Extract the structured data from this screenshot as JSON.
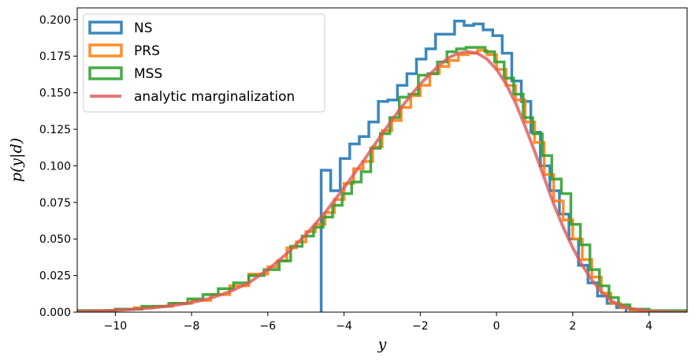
{
  "chart_data": {
    "type": "histogram",
    "xlabel": "y",
    "ylabel": "p(y|d)",
    "xlim": [
      -11,
      5
    ],
    "ylim": [
      0,
      0.208
    ],
    "xticks": [
      -10,
      -8,
      -6,
      -4,
      -2,
      0,
      2,
      4
    ],
    "xtick_labels": [
      "−10",
      "−8",
      "−6",
      "−4",
      "−2",
      "0",
      "2",
      "4"
    ],
    "yticks": [
      0,
      0.025,
      0.05,
      0.075,
      0.1,
      0.125,
      0.15,
      0.175,
      0.2
    ],
    "ytick_labels": [
      "0.000",
      "0.025",
      "0.050",
      "0.075",
      "0.100",
      "0.125",
      "0.150",
      "0.175",
      "0.200"
    ],
    "grid": false,
    "legend_position": "upper-left",
    "series": [
      {
        "name": "NS",
        "kind": "step-histogram",
        "color": "#1f77b4",
        "edges": [
          -4.6,
          -4.35,
          -4.1,
          -3.85,
          -3.6,
          -3.35,
          -3.1,
          -2.85,
          -2.6,
          -2.35,
          -2.1,
          -1.85,
          -1.6,
          -1.35,
          -1.1,
          -0.85,
          -0.6,
          -0.35,
          -0.1,
          0.15,
          0.4,
          0.65,
          0.9,
          1.15,
          1.4,
          1.65,
          1.9,
          2.15,
          2.4,
          2.65,
          2.9,
          3.15,
          3.4
        ],
        "values": [
          0.097,
          0.083,
          0.105,
          0.115,
          0.12,
          0.13,
          0.144,
          0.145,
          0.155,
          0.163,
          0.173,
          0.18,
          0.19,
          0.19,
          0.199,
          0.196,
          0.197,
          0.193,
          0.189,
          0.177,
          0.158,
          0.144,
          0.123,
          0.1,
          0.083,
          0.067,
          0.05,
          0.032,
          0.02,
          0.011,
          0.006,
          0.003
        ]
      },
      {
        "name": "PRS",
        "kind": "step-histogram",
        "color": "#ff7f0e",
        "edges": [
          -11,
          -10,
          -9.5,
          -9,
          -8.5,
          -8,
          -7.5,
          -7,
          -6.5,
          -6,
          -5.75,
          -5.5,
          -5.25,
          -5,
          -4.75,
          -4.5,
          -4.25,
          -4,
          -3.75,
          -3.5,
          -3.25,
          -3,
          -2.75,
          -2.5,
          -2.25,
          -2,
          -1.75,
          -1.5,
          -1.25,
          -1,
          -0.75,
          -0.5,
          -0.25,
          0,
          0.25,
          0.5,
          0.75,
          1,
          1.25,
          1.5,
          1.75,
          2,
          2.25,
          2.5,
          2.75,
          3,
          3.25,
          3.5,
          4,
          5
        ],
        "values": [
          0.001,
          0.002,
          0.003,
          0.004,
          0.006,
          0.008,
          0.012,
          0.018,
          0.026,
          0.031,
          0.035,
          0.044,
          0.048,
          0.055,
          0.06,
          0.068,
          0.077,
          0.088,
          0.098,
          0.103,
          0.113,
          0.124,
          0.131,
          0.14,
          0.148,
          0.155,
          0.163,
          0.168,
          0.172,
          0.176,
          0.177,
          0.179,
          0.176,
          0.166,
          0.155,
          0.145,
          0.13,
          0.116,
          0.094,
          0.076,
          0.063,
          0.05,
          0.036,
          0.024,
          0.013,
          0.006,
          0.003,
          0.001,
          0.0
        ]
      },
      {
        "name": "MSS",
        "kind": "step-histogram",
        "color": "#2ca02c",
        "edges": [
          -11,
          -10,
          -9.3,
          -8.6,
          -8.1,
          -7.7,
          -7.3,
          -6.9,
          -6.5,
          -6.1,
          -5.7,
          -5.4,
          -5.1,
          -4.8,
          -4.55,
          -4.3,
          -4.05,
          -3.8,
          -3.55,
          -3.3,
          -3.05,
          -2.8,
          -2.55,
          -2.3,
          -2.05,
          -1.8,
          -1.55,
          -1.3,
          -1.05,
          -0.8,
          -0.55,
          -0.3,
          -0.05,
          0.2,
          0.45,
          0.7,
          0.95,
          1.2,
          1.45,
          1.7,
          1.95,
          2.2,
          2.45,
          2.7,
          2.95,
          3.2,
          3.5,
          4,
          5
        ],
        "values": [
          0.001,
          0.002,
          0.004,
          0.006,
          0.009,
          0.012,
          0.016,
          0.02,
          0.025,
          0.029,
          0.035,
          0.045,
          0.052,
          0.058,
          0.065,
          0.073,
          0.081,
          0.089,
          0.096,
          0.112,
          0.122,
          0.133,
          0.147,
          0.149,
          0.162,
          0.163,
          0.171,
          0.178,
          0.18,
          0.181,
          0.181,
          0.178,
          0.171,
          0.16,
          0.149,
          0.133,
          0.122,
          0.107,
          0.091,
          0.081,
          0.06,
          0.046,
          0.029,
          0.018,
          0.01,
          0.005,
          0.002,
          0.001
        ]
      },
      {
        "name": "analytic marginalization",
        "kind": "line",
        "color": "#e15759",
        "x": [
          -11,
          -10.5,
          -10,
          -9.5,
          -9,
          -8.5,
          -8,
          -7.5,
          -7,
          -6.5,
          -6,
          -5.5,
          -5,
          -4.5,
          -4,
          -3.5,
          -3,
          -2.5,
          -2,
          -1.5,
          -1.25,
          -1,
          -0.75,
          -0.5,
          -0.25,
          0,
          0.25,
          0.5,
          0.75,
          1,
          1.25,
          1.5,
          1.75,
          2,
          2.25,
          2.5,
          2.75,
          3,
          3.25,
          3.5,
          4,
          4.5,
          5
        ],
        "y": [
          0.0005,
          0.0008,
          0.0012,
          0.002,
          0.003,
          0.0045,
          0.0065,
          0.0095,
          0.014,
          0.02,
          0.029,
          0.04,
          0.053,
          0.068,
          0.085,
          0.103,
          0.122,
          0.14,
          0.156,
          0.169,
          0.174,
          0.177,
          0.178,
          0.177,
          0.173,
          0.166,
          0.156,
          0.143,
          0.127,
          0.11,
          0.092,
          0.074,
          0.058,
          0.044,
          0.032,
          0.022,
          0.014,
          0.008,
          0.0045,
          0.0025,
          0.0007,
          0.0002,
          0.0
        ]
      }
    ]
  }
}
